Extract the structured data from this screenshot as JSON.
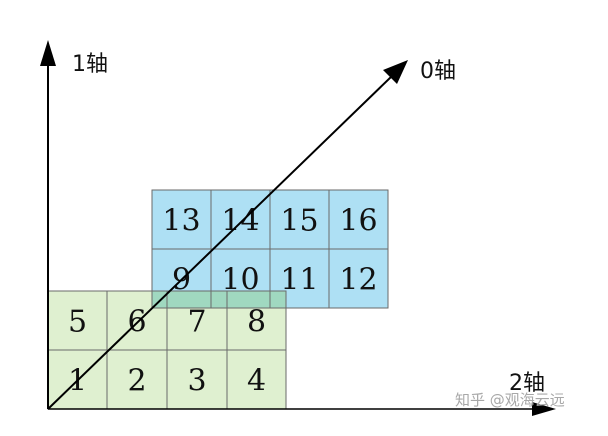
{
  "axes": {
    "axis1": {
      "label": "1轴"
    },
    "axis0": {
      "label": "0轴"
    },
    "axis2": {
      "label": "2轴"
    }
  },
  "front_layer": {
    "fill": "#dff0d0",
    "rows": [
      [
        "5",
        "6",
        "7",
        "8"
      ],
      [
        "1",
        "2",
        "3",
        "4"
      ]
    ]
  },
  "back_layer": {
    "fill": "#aee0f4",
    "rows": [
      [
        "13",
        "14",
        "15",
        "16"
      ],
      [
        "9",
        "10",
        "11",
        "12"
      ]
    ]
  },
  "overlap_fill": "#a0d8c0",
  "watermark": "知乎 @观海云远"
}
